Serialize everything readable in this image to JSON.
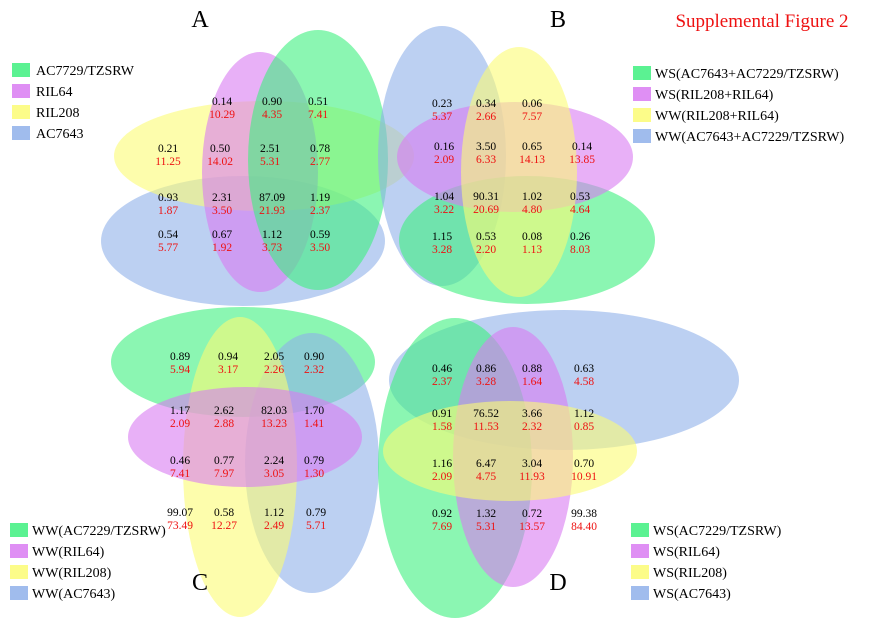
{
  "figure_title": "Supplemental Figure 2",
  "colors": {
    "green": "#3ef07f",
    "magenta": "#d97bf2",
    "yellow": "#fbfb74",
    "blue": "#8fb0ea",
    "red_text": "#ee1111",
    "black_text": "#000000"
  },
  "panels": {
    "A": {
      "label": "A",
      "legend": [
        {
          "label": "AC7729/TZSRW",
          "color": "green"
        },
        {
          "label": "RIL64",
          "color": "magenta"
        },
        {
          "label": "RIL208",
          "color": "yellow"
        },
        {
          "label": "AC7643",
          "color": "blue"
        }
      ],
      "regions": [
        {
          "black": "0.14",
          "red": "10.29"
        },
        {
          "black": "0.90",
          "red": "4.35"
        },
        {
          "black": "0.51",
          "red": "7.41"
        },
        {
          "black": "0.21",
          "red": "11.25"
        },
        {
          "black": "0.50",
          "red": "14.02"
        },
        {
          "black": "2.51",
          "red": "5.31"
        },
        {
          "black": "0.78",
          "red": "2.77"
        },
        {
          "black": "0.93",
          "red": "1.87"
        },
        {
          "black": "2.31",
          "red": "3.50"
        },
        {
          "black": "87.09",
          "red": "21.93"
        },
        {
          "black": "1.19",
          "red": "2.37"
        },
        {
          "black": "0.54",
          "red": "5.77"
        },
        {
          "black": "0.67",
          "red": "1.92"
        },
        {
          "black": "1.12",
          "red": "3.73"
        },
        {
          "black": "0.59",
          "red": "3.50"
        }
      ]
    },
    "B": {
      "label": "B",
      "legend": [
        {
          "label": "WS(AC7643+AC7229/TZSRW)",
          "color": "green"
        },
        {
          "label": "WS(RIL208+RIL64)",
          "color": "magenta"
        },
        {
          "label": "WW(RIL208+RIL64)",
          "color": "yellow"
        },
        {
          "label": "WW(AC7643+AC7229/TZSRW)",
          "color": "blue"
        }
      ],
      "regions": [
        {
          "black": "0.23",
          "red": "5.37"
        },
        {
          "black": "0.34",
          "red": "2.66"
        },
        {
          "black": "0.06",
          "red": "7.57"
        },
        {
          "black": "0.16",
          "red": "2.09"
        },
        {
          "black": "3.50",
          "red": "6.33"
        },
        {
          "black": "0.65",
          "red": "14.13"
        },
        {
          "black": "0.14",
          "red": "13.85"
        },
        {
          "black": "1.04",
          "red": "3.22"
        },
        {
          "black": "90.31",
          "red": "20.69"
        },
        {
          "black": "1.02",
          "red": "4.80"
        },
        {
          "black": "0.53",
          "red": "4.64"
        },
        {
          "black": "1.15",
          "red": "3.28"
        },
        {
          "black": "0.53",
          "red": "2.20"
        },
        {
          "black": "0.08",
          "red": "1.13"
        },
        {
          "black": "0.26",
          "red": "8.03"
        }
      ]
    },
    "C": {
      "label": "C",
      "legend": [
        {
          "label": "WW(AC7229/TZSRW)",
          "color": "green"
        },
        {
          "label": "WW(RIL64)",
          "color": "magenta"
        },
        {
          "label": "WW(RIL208)",
          "color": "yellow"
        },
        {
          "label": "WW(AC7643)",
          "color": "blue"
        }
      ],
      "regions": [
        {
          "black": "0.89",
          "red": "5.94"
        },
        {
          "black": "0.94",
          "red": "3.17"
        },
        {
          "black": "2.05",
          "red": "2.26"
        },
        {
          "black": "0.90",
          "red": "2.32"
        },
        {
          "black": "1.17",
          "red": "2.09"
        },
        {
          "black": "2.62",
          "red": "2.88"
        },
        {
          "black": "82.03",
          "red": "13.23"
        },
        {
          "black": "1.70",
          "red": "1.41"
        },
        {
          "black": "0.46",
          "red": "7.41"
        },
        {
          "black": "0.77",
          "red": "7.97"
        },
        {
          "black": "2.24",
          "red": "3.05"
        },
        {
          "black": "0.79",
          "red": "1.30"
        },
        {
          "black": "99.07",
          "red": "73.49"
        },
        {
          "black": "0.58",
          "red": "12.27"
        },
        {
          "black": "1.12",
          "red": "2.49"
        },
        {
          "black": "0.79",
          "red": "5.71"
        }
      ]
    },
    "D": {
      "label": "D",
      "legend": [
        {
          "label": "WS(AC7229/TZSRW)",
          "color": "green"
        },
        {
          "label": "WS(RIL64)",
          "color": "magenta"
        },
        {
          "label": "WS(RIL208)",
          "color": "yellow"
        },
        {
          "label": "WS(AC7643)",
          "color": "blue"
        }
      ],
      "regions": [
        {
          "black": "0.46",
          "red": "2.37"
        },
        {
          "black": "0.86",
          "red": "3.28"
        },
        {
          "black": "0.88",
          "red": "1.64"
        },
        {
          "black": "0.63",
          "red": "4.58"
        },
        {
          "black": "0.91",
          "red": "1.58"
        },
        {
          "black": "76.52",
          "red": "11.53"
        },
        {
          "black": "3.66",
          "red": "2.32"
        },
        {
          "black": "1.12",
          "red": "0.85"
        },
        {
          "black": "1.16",
          "red": "2.09"
        },
        {
          "black": "6.47",
          "red": "4.75"
        },
        {
          "black": "3.04",
          "red": "11.93"
        },
        {
          "black": "0.70",
          "red": "10.91"
        },
        {
          "black": "0.92",
          "red": "7.69"
        },
        {
          "black": "1.32",
          "red": "5.31"
        },
        {
          "black": "0.72",
          "red": "13.57"
        },
        {
          "black": "99.38",
          "red": "84.40"
        }
      ]
    }
  }
}
